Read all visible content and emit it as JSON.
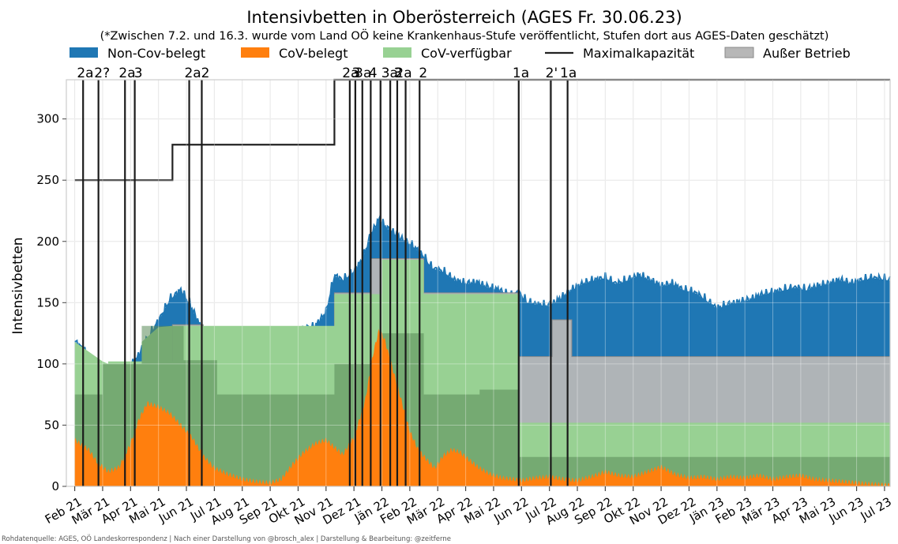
{
  "chart_data": {
    "type": "area",
    "title": "Intensivbetten in Oberösterreich (AGES Fr. 30.06.23)",
    "subtitle": "(*Zwischen 7.2. und 16.3. wurde vom Land OÖ keine Krankenhaus-Stufe veröffentlicht, Stufen dort aus AGES-Daten geschätzt)",
    "ylabel": "Intensivbetten",
    "xlabel": "",
    "ylim": [
      0,
      332
    ],
    "yticks": [
      0,
      50,
      100,
      150,
      200,
      250,
      300
    ],
    "month_labels": [
      "Feb 21",
      "Mär 21",
      "Apr 21",
      "Mai 21",
      "Jun 21",
      "Jul 21",
      "Aug 21",
      "Sep 21",
      "Okt 21",
      "Nov 21",
      "Dez 21",
      "Jän 22",
      "Feb 22",
      "Mär 22",
      "Apr 22",
      "Mai 22",
      "Jun 22",
      "Jul 22",
      "Aug 22",
      "Sep 22",
      "Okt 22",
      "Nov 22",
      "Dez 22",
      "Jän 23",
      "Feb 23",
      "Mär 23",
      "Apr 23",
      "Mai 23",
      "Jun 23",
      "Jul 23"
    ],
    "legend": [
      {
        "key": "noncov",
        "label": "Non-Cov-belegt",
        "color": "#1f77b4"
      },
      {
        "key": "cov",
        "label": "CoV-belegt",
        "color": "#ff7f0e"
      },
      {
        "key": "avail",
        "label": "CoV-verfügbar",
        "color": "#98d193"
      },
      {
        "key": "max",
        "label": "Maximalkapazität",
        "color": "#222222"
      },
      {
        "key": "ob",
        "label": "Außer Betrieb",
        "color": "#b7b7b7"
      }
    ],
    "max_capacity": [
      [
        0,
        250
      ],
      [
        3.5,
        250
      ],
      [
        3.5,
        279
      ],
      [
        9.3,
        279
      ],
      [
        9.3,
        332
      ],
      [
        29.2,
        332
      ]
    ],
    "covid_reserved": [
      [
        0,
        75
      ],
      [
        1,
        75
      ],
      [
        1,
        100
      ],
      [
        2.4,
        100
      ],
      [
        2.4,
        131
      ],
      [
        3.9,
        131
      ],
      [
        3.9,
        103
      ],
      [
        5.1,
        103
      ],
      [
        5.1,
        75
      ],
      [
        9.3,
        75
      ],
      [
        9.3,
        100
      ],
      [
        11,
        100
      ],
      [
        11,
        125
      ],
      [
        12.5,
        125
      ],
      [
        12.5,
        75
      ],
      [
        14.5,
        75
      ],
      [
        14.5,
        79
      ],
      [
        15.9,
        79
      ],
      [
        15.9,
        24
      ],
      [
        29.2,
        24
      ]
    ],
    "covid_available": [
      [
        0,
        100
      ],
      [
        1.2,
        100
      ],
      [
        1.2,
        102
      ],
      [
        3.5,
        102
      ],
      [
        3.5,
        131
      ],
      [
        9.3,
        131
      ],
      [
        9.3,
        157
      ],
      [
        11,
        157
      ],
      [
        11,
        185
      ],
      [
        12.5,
        185
      ],
      [
        12.5,
        157
      ],
      [
        15.9,
        157
      ],
      [
        15.9,
        52
      ],
      [
        29.2,
        52
      ]
    ],
    "out_of_service": [
      [
        0,
        0
      ],
      [
        3.5,
        0
      ],
      [
        3.5,
        132
      ],
      [
        4.6,
        132
      ],
      [
        4.6,
        105
      ],
      [
        9.3,
        105
      ],
      [
        9.3,
        158
      ],
      [
        10.6,
        158
      ],
      [
        10.6,
        186
      ],
      [
        12.5,
        186
      ],
      [
        12.5,
        158
      ],
      [
        15.9,
        158
      ],
      [
        15.9,
        106
      ],
      [
        17.1,
        106
      ],
      [
        17.1,
        136
      ],
      [
        17.8,
        136
      ],
      [
        17.8,
        106
      ],
      [
        29.2,
        106
      ]
    ],
    "cov_occupied": [
      [
        0,
        38
      ],
      [
        0.5,
        30
      ],
      [
        0.8,
        20
      ],
      [
        1.2,
        12
      ],
      [
        1.6,
        16
      ],
      [
        2,
        35
      ],
      [
        2.3,
        55
      ],
      [
        2.6,
        68
      ],
      [
        3,
        65
      ],
      [
        3.4,
        60
      ],
      [
        3.8,
        50
      ],
      [
        4.2,
        40
      ],
      [
        4.6,
        25
      ],
      [
        5,
        15
      ],
      [
        5.5,
        10
      ],
      [
        6,
        6
      ],
      [
        6.5,
        4
      ],
      [
        7,
        3
      ],
      [
        7.4,
        6
      ],
      [
        7.8,
        18
      ],
      [
        8.2,
        28
      ],
      [
        8.6,
        35
      ],
      [
        9,
        38
      ],
      [
        9.3,
        32
      ],
      [
        9.6,
        26
      ],
      [
        10,
        40
      ],
      [
        10.4,
        70
      ],
      [
        10.7,
        110
      ],
      [
        10.9,
        128
      ],
      [
        11.1,
        120
      ],
      [
        11.4,
        95
      ],
      [
        11.7,
        70
      ],
      [
        12,
        45
      ],
      [
        12.3,
        30
      ],
      [
        12.6,
        22
      ],
      [
        12.9,
        15
      ],
      [
        13.2,
        25
      ],
      [
        13.5,
        30
      ],
      [
        13.8,
        28
      ],
      [
        14.1,
        22
      ],
      [
        14.5,
        15
      ],
      [
        14.9,
        10
      ],
      [
        15.3,
        7
      ],
      [
        15.7,
        6
      ],
      [
        16,
        5
      ],
      [
        16.5,
        7
      ],
      [
        17,
        8
      ],
      [
        17.5,
        6
      ],
      [
        18,
        5
      ],
      [
        18.5,
        8
      ],
      [
        19,
        12
      ],
      [
        19.5,
        9
      ],
      [
        20,
        8
      ],
      [
        20.5,
        12
      ],
      [
        21,
        16
      ],
      [
        21.5,
        10
      ],
      [
        22,
        7
      ],
      [
        22.5,
        8
      ],
      [
        23,
        6
      ],
      [
        23.5,
        8
      ],
      [
        24,
        7
      ],
      [
        24.5,
        9
      ],
      [
        25,
        6
      ],
      [
        25.5,
        8
      ],
      [
        26,
        9
      ],
      [
        26.5,
        6
      ],
      [
        27,
        5
      ],
      [
        27.5,
        4
      ],
      [
        28,
        3
      ],
      [
        28.5,
        2
      ],
      [
        29.2,
        1
      ]
    ],
    "total_occupied": [
      [
        0,
        118
      ],
      [
        0.3,
        112
      ],
      [
        0.6,
        100
      ],
      [
        1,
        88
      ],
      [
        1.4,
        83
      ],
      [
        1.8,
        92
      ],
      [
        2.2,
        103
      ],
      [
        2.6,
        120
      ],
      [
        3,
        135
      ],
      [
        3.4,
        152
      ],
      [
        3.8,
        160
      ],
      [
        4.2,
        145
      ],
      [
        4.6,
        125
      ],
      [
        5,
        108
      ],
      [
        5.4,
        112
      ],
      [
        5.8,
        108
      ],
      [
        6.2,
        116
      ],
      [
        6.6,
        114
      ],
      [
        7,
        112
      ],
      [
        7.4,
        118
      ],
      [
        7.8,
        122
      ],
      [
        8.2,
        128
      ],
      [
        8.6,
        130
      ],
      [
        9,
        142
      ],
      [
        9.3,
        172
      ],
      [
        9.6,
        168
      ],
      [
        10,
        175
      ],
      [
        10.3,
        185
      ],
      [
        10.6,
        205
      ],
      [
        10.9,
        218
      ],
      [
        11.2,
        210
      ],
      [
        11.5,
        205
      ],
      [
        11.8,
        200
      ],
      [
        12.1,
        196
      ],
      [
        12.4,
        190
      ],
      [
        12.8,
        178
      ],
      [
        13.2,
        175
      ],
      [
        13.6,
        168
      ],
      [
        14,
        165
      ],
      [
        14.4,
        166
      ],
      [
        14.8,
        162
      ],
      [
        15.2,
        160
      ],
      [
        15.6,
        155
      ],
      [
        15.9,
        158
      ],
      [
        16.2,
        150
      ],
      [
        16.6,
        148
      ],
      [
        17,
        147
      ],
      [
        17.4,
        153
      ],
      [
        17.8,
        160
      ],
      [
        18.2,
        165
      ],
      [
        18.6,
        168
      ],
      [
        19,
        170
      ],
      [
        19.4,
        165
      ],
      [
        19.8,
        168
      ],
      [
        20.2,
        172
      ],
      [
        20.6,
        168
      ],
      [
        21,
        163
      ],
      [
        21.4,
        165
      ],
      [
        21.8,
        160
      ],
      [
        22.2,
        158
      ],
      [
        22.6,
        152
      ],
      [
        23,
        145
      ],
      [
        23.4,
        148
      ],
      [
        23.8,
        150
      ],
      [
        24.2,
        152
      ],
      [
        24.6,
        156
      ],
      [
        25,
        158
      ],
      [
        25.4,
        160
      ],
      [
        25.8,
        162
      ],
      [
        26.2,
        160
      ],
      [
        26.6,
        163
      ],
      [
        27,
        165
      ],
      [
        27.4,
        168
      ],
      [
        27.8,
        165
      ],
      [
        28.2,
        168
      ],
      [
        28.6,
        170
      ],
      [
        29.2,
        168
      ]
    ],
    "early_avail_region": [
      [
        0,
        118
      ],
      [
        1,
        102
      ],
      [
        1.2,
        100
      ],
      [
        2.4,
        102
      ],
      [
        2.4,
        118
      ],
      [
        3,
        130
      ],
      [
        3.5,
        131
      ]
    ],
    "stage_lines": [
      0.3,
      0.85,
      1.8,
      2.15,
      4.1,
      4.55,
      9.85,
      10.05,
      10.3,
      10.6,
      10.95,
      11.3,
      11.55,
      11.85,
      12.35,
      15.9,
      17.05,
      17.65
    ],
    "stage_labels": [
      {
        "x": 0.35,
        "text": "2a"
      },
      {
        "x": 0.95,
        "text": "2?"
      },
      {
        "x": 1.85,
        "text": "2a"
      },
      {
        "x": 2.25,
        "text": "3"
      },
      {
        "x": 4.2,
        "text": "2a"
      },
      {
        "x": 4.65,
        "text": "2"
      },
      {
        "x": 9.85,
        "text": "2a"
      },
      {
        "x": 10.05,
        "text": "3"
      },
      {
        "x": 10.3,
        "text": "3a"
      },
      {
        "x": 10.65,
        "text": "4"
      },
      {
        "x": 11.25,
        "text": "3a"
      },
      {
        "x": 11.55,
        "text": "3"
      },
      {
        "x": 11.75,
        "text": "2a"
      },
      {
        "x": 12.45,
        "text": "2"
      },
      {
        "x": 15.95,
        "text": "1a"
      },
      {
        "x": 17.05,
        "text": "2'"
      },
      {
        "x": 17.65,
        "text": "1a"
      }
    ]
  },
  "footer": {
    "source": "Rohdatenquelle: AGES, OÖ Landeskorrespondenz | Nach einer Darstellung von @brosch_alex | Darstellung & Bearbeitung: @zeitferne"
  }
}
